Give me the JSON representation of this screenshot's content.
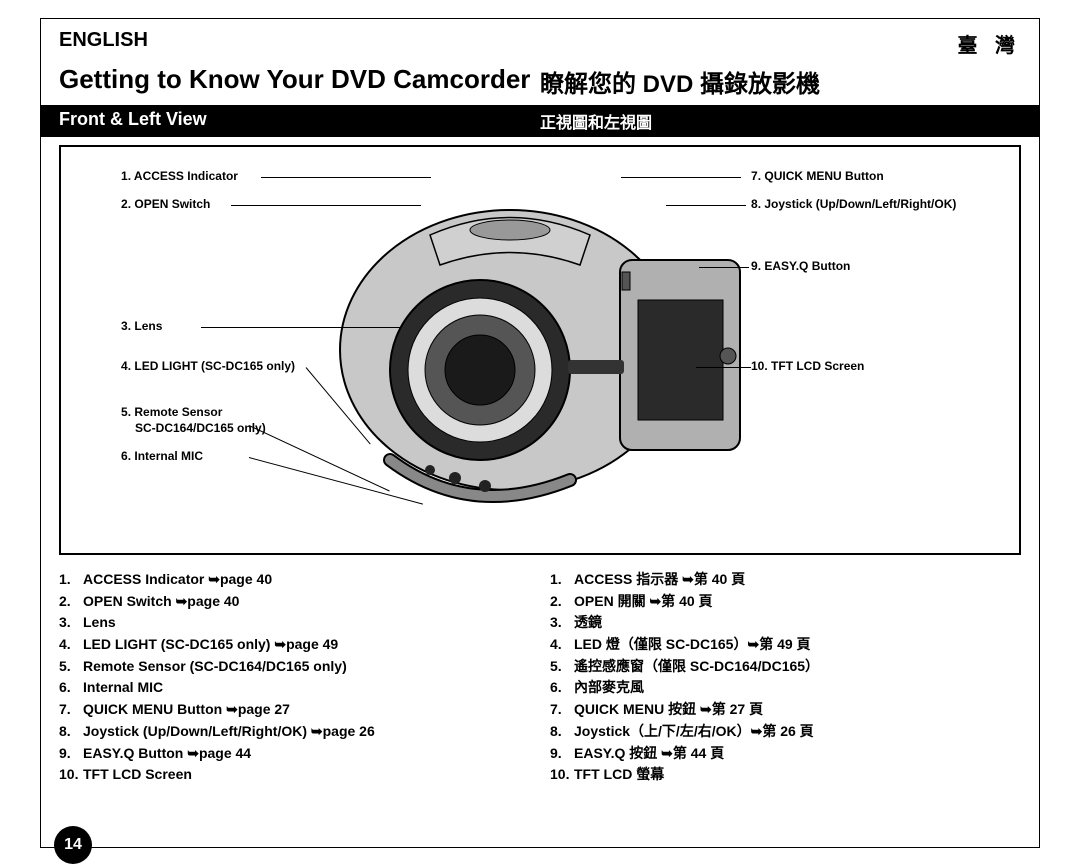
{
  "header": {
    "lang_en": "ENGLISH",
    "lang_tw": "臺 灣"
  },
  "titles": {
    "en": "Getting to Know Your DVD Camcorder",
    "tw": "瞭解您的 DVD 攝錄放影機"
  },
  "section_bar": {
    "en": "Front & Left View",
    "tw": "正視圖和左視圖"
  },
  "callouts_left": [
    {
      "n": "1",
      "label": "ACCESS Indicator"
    },
    {
      "n": "2",
      "label": "OPEN Switch"
    },
    {
      "n": "3",
      "label": "Lens"
    },
    {
      "n": "4",
      "label": "LED LIGHT (SC-DC165 only)"
    },
    {
      "n": "5",
      "label": "Remote Sensor",
      "sub": "SC-DC164/DC165 only)"
    },
    {
      "n": "6",
      "label": "Internal MIC"
    }
  ],
  "callouts_right": [
    {
      "n": "7",
      "label": "QUICK MENU Button"
    },
    {
      "n": "8",
      "label": "Joystick (Up/Down/Left/Right/OK)"
    },
    {
      "n": "9",
      "label": "EASY.Q Button"
    },
    {
      "n": "10",
      "label": "TFT LCD Screen"
    }
  ],
  "list_en": [
    "ACCESS Indicator ➥page 40",
    "OPEN Switch ➥page 40",
    "Lens",
    "LED LIGHT (SC-DC165 only) ➥page 49",
    "Remote Sensor (SC-DC164/DC165 only)",
    "Internal MIC",
    "QUICK MENU Button ➥page 27",
    "Joystick (Up/Down/Left/Right/OK) ➥page 26",
    "EASY.Q Button ➥page 44",
    "TFT LCD Screen"
  ],
  "list_tw": [
    "ACCESS 指示器 ➥第 40 頁",
    "OPEN 開關 ➥第 40 頁",
    "透鏡",
    "LED 燈（僅限 SC-DC165）➥第 49 頁",
    "遙控感應窗（僅限 SC-DC164/DC165）",
    "內部麥克風",
    "QUICK MENU 按鈕 ➥第 27 頁",
    "Joystick（上/下/左/右/OK）➥第 26 頁",
    "EASY.Q 按鈕 ➥第 44 頁",
    "TFT LCD 螢幕"
  ],
  "page_number": "14",
  "colors": {
    "black": "#000000",
    "white": "#ffffff",
    "cam_body": "#c0c0c0",
    "cam_dark": "#3a3a3a"
  }
}
